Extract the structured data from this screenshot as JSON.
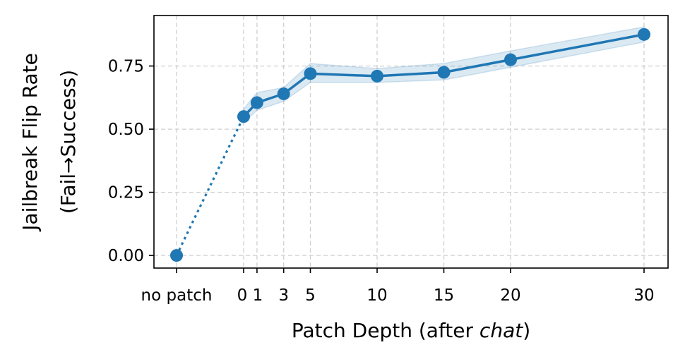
{
  "chart_data": {
    "type": "line",
    "xlabel_prefix": "Patch Depth (after ",
    "xlabel_italic": "chat",
    "xlabel_suffix": ")",
    "ylabel_line1": "Jailbreak Flip Rate",
    "ylabel_line2": "(Fail→Success)",
    "x_tick_labels": [
      "no patch",
      "0",
      "1",
      "3",
      "5",
      "10",
      "15",
      "20",
      "30"
    ],
    "y_tick_labels": [
      "0.00",
      "0.25",
      "0.50",
      "0.75"
    ],
    "y_ticks": [
      0,
      0.25,
      0.5,
      0.75
    ],
    "ylim": [
      -0.05,
      0.95
    ],
    "grid": true,
    "color": "#1f77b4",
    "baseline": {
      "label": "no patch",
      "value": 0.0
    },
    "x": [
      0,
      1,
      3,
      5,
      10,
      15,
      20,
      30
    ],
    "y": [
      0.55,
      0.605,
      0.64,
      0.72,
      0.71,
      0.725,
      0.775,
      0.875
    ],
    "band_lower": [
      0.525,
      0.575,
      0.61,
      0.685,
      0.685,
      0.695,
      0.745,
      0.845
    ],
    "band_upper": [
      0.58,
      0.645,
      0.665,
      0.76,
      0.74,
      0.76,
      0.81,
      0.905
    ]
  }
}
